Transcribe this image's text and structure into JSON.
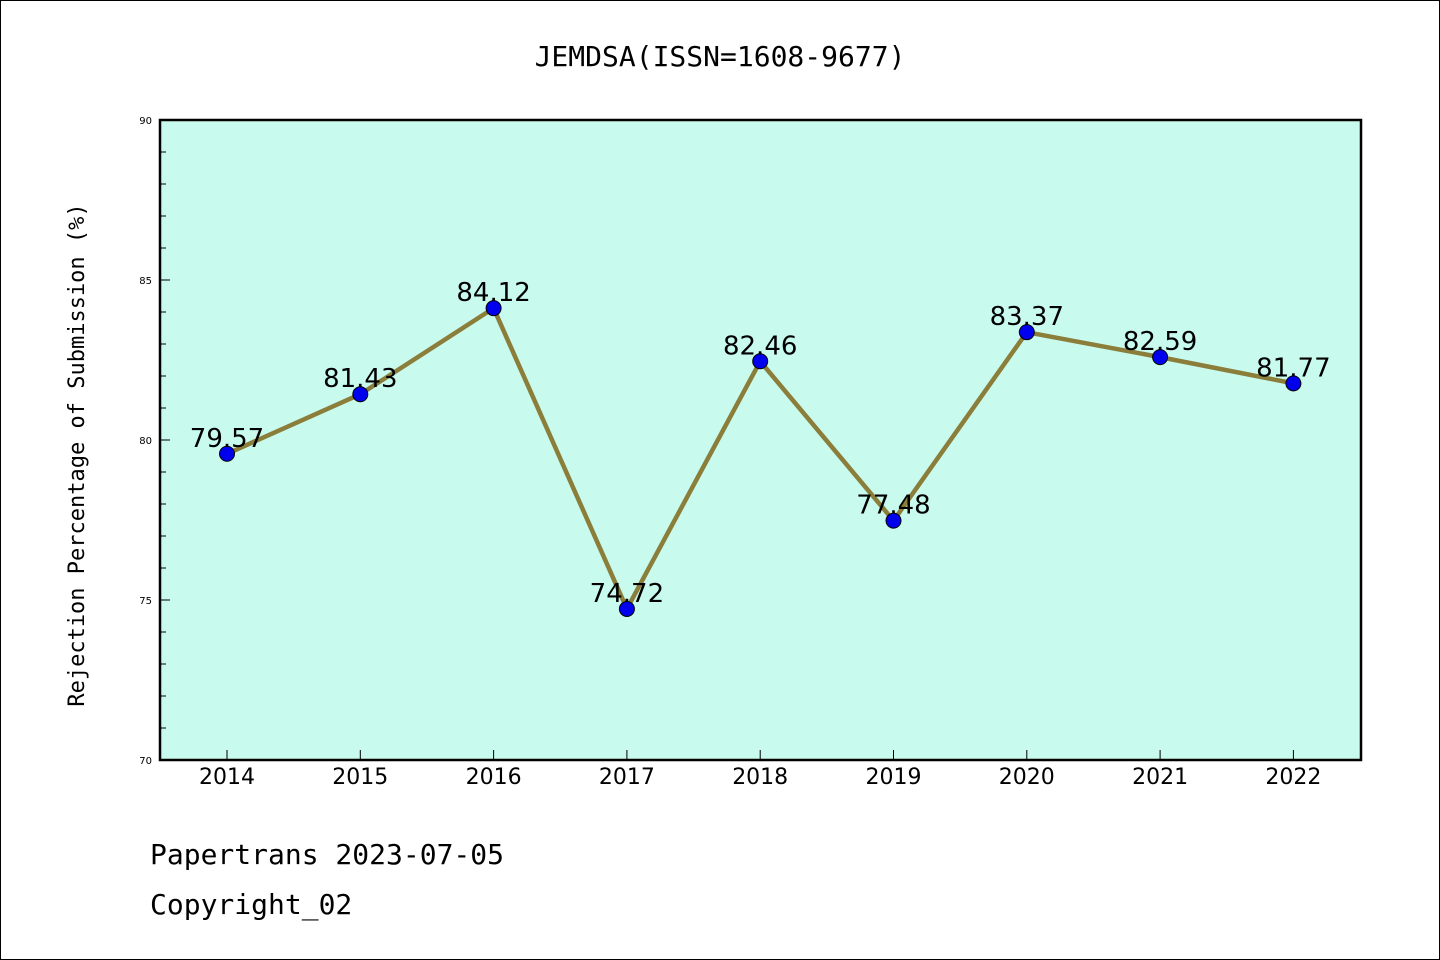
{
  "chart_data": {
    "type": "line",
    "title": "JEMDSA(ISSN=1608-9677)",
    "xlabel": "",
    "ylabel": "Rejection Percentage of Submission (%)",
    "categories": [
      "2014",
      "2015",
      "2016",
      "2017",
      "2018",
      "2019",
      "2020",
      "2021",
      "2022"
    ],
    "values": [
      79.57,
      81.43,
      84.12,
      74.72,
      82.46,
      77.48,
      83.37,
      82.59,
      81.77
    ],
    "data_labels": [
      "79.57",
      "81.43",
      "84.12",
      "74.72",
      "82.46",
      "77.48",
      "83.37",
      "82.59",
      "81.77"
    ],
    "ylim": [
      70,
      90
    ],
    "yticks": [
      "70",
      "75",
      "80",
      "85",
      "90"
    ],
    "grid": false,
    "colors": {
      "plot_background": "#c8fbee",
      "line": "#8b7d3a",
      "marker": "#0000ee"
    }
  },
  "footer": {
    "source": "Papertrans 2023-07-05",
    "copyright": "Copyright_02"
  }
}
